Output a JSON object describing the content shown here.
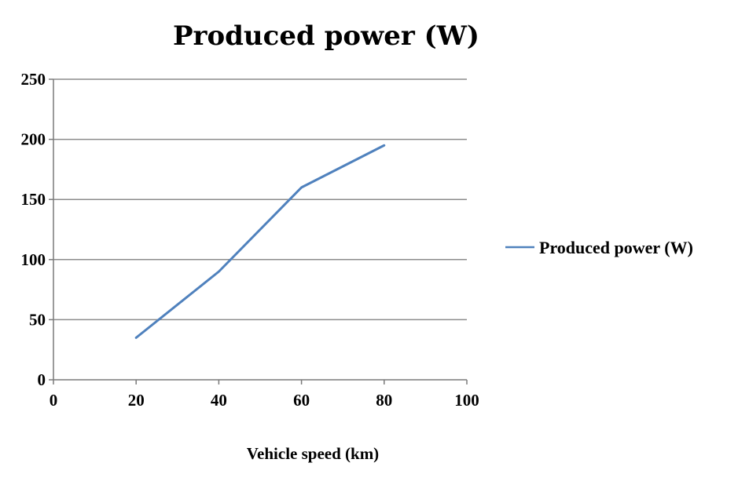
{
  "chart_data": {
    "type": "line",
    "title": "Produced power (W)",
    "xlabel": "Vehicle speed (km)",
    "ylabel": "",
    "xlim": [
      0,
      100
    ],
    "ylim": [
      0,
      250
    ],
    "xticks": [
      0,
      20,
      40,
      60,
      80,
      100
    ],
    "yticks": [
      0,
      50,
      100,
      150,
      200,
      250
    ],
    "grid": true,
    "legend_position": "right",
    "series": [
      {
        "name": "Produced power (W)",
        "color": "#4f81bd",
        "x": [
          20,
          40,
          60,
          80
        ],
        "y": [
          35,
          90,
          160,
          195
        ]
      }
    ]
  }
}
